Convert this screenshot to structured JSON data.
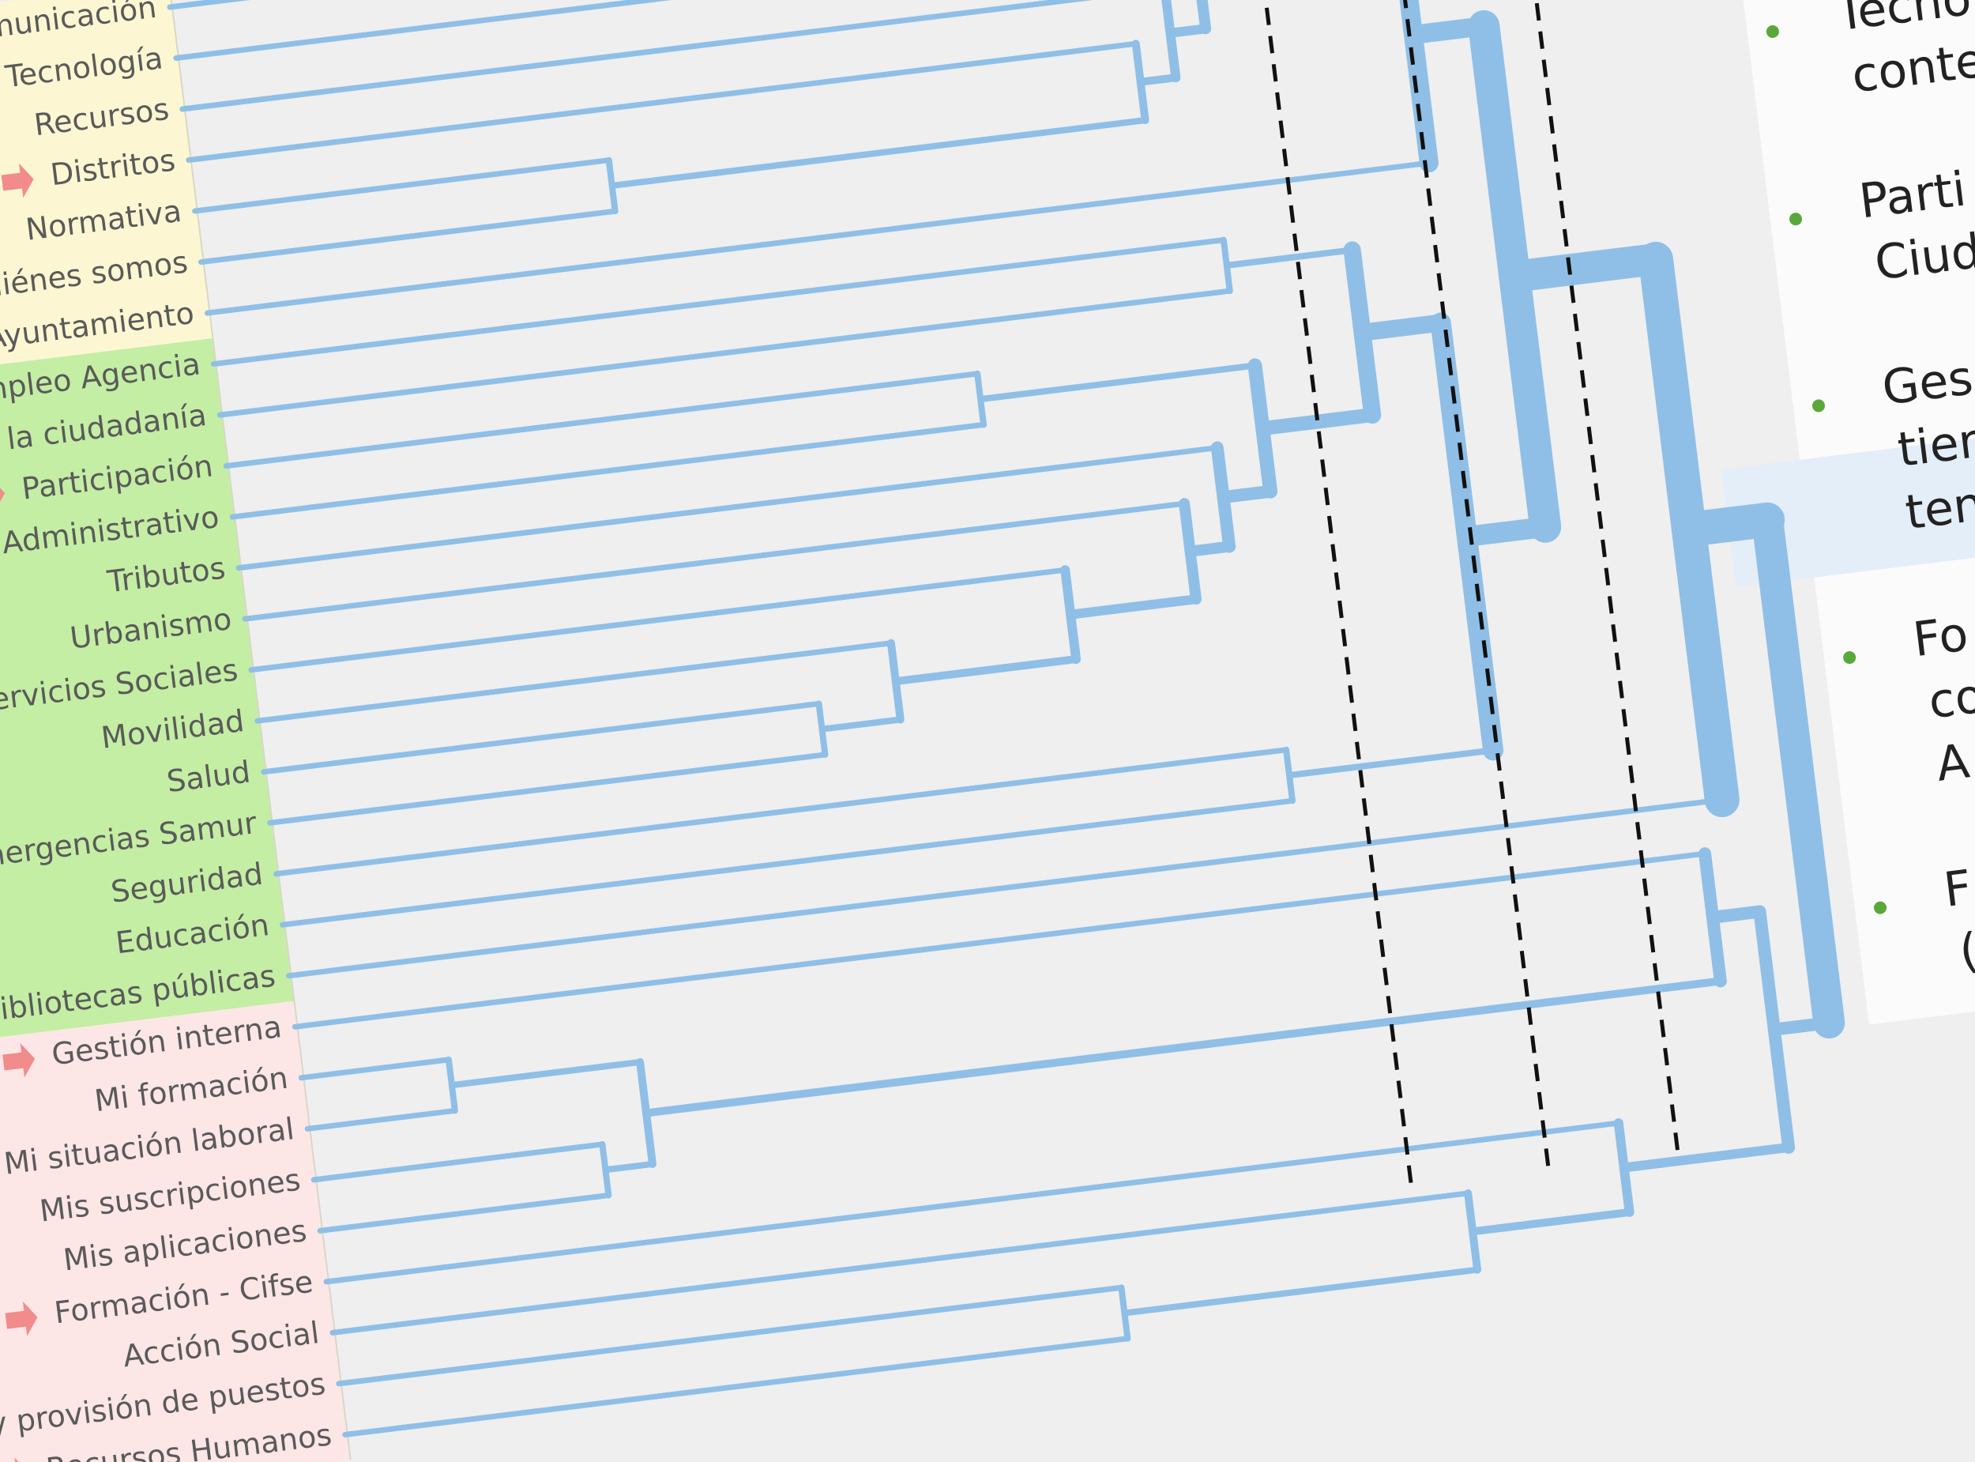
{
  "dendrogram": {
    "groups": [
      {
        "labels": [
          "omunicación",
          "Tecnología",
          "Recursos",
          "Distritos",
          "Normativa",
          "uiénes somos",
          "o Ayuntamiento"
        ]
      },
      {
        "labels": [
          "mpleo Agencia",
          "a la ciudadanía",
          "Participación",
          "o - Administrativo",
          "Tributos",
          "Urbanismo",
          "Servicios Sociales",
          "Movilidad",
          "Salud",
          "mergencias Samur",
          "Seguridad",
          "Educación",
          "Bibliotecas públicas"
        ]
      },
      {
        "labels": [
          "Gestión interna",
          "Mi formación",
          "Mi situación laboral",
          "Mis suscripciones",
          "Mis aplicaciones",
          "Formación - Cifse",
          "Acción Social",
          "eo y provisión de puestos",
          "Recursos Humanos"
        ]
      }
    ]
  },
  "panel": {
    "bullets": [
      {
        "lines": [
          "Tecno",
          "conte"
        ]
      },
      {
        "lines": [
          "Parti",
          "Ciud"
        ]
      },
      {
        "lines": [
          "Ges",
          "tier",
          "ten"
        ]
      },
      {
        "lines": [
          "Fo",
          "co",
          "A"
        ]
      },
      {
        "lines": [
          "F",
          "("
        ]
      }
    ]
  }
}
